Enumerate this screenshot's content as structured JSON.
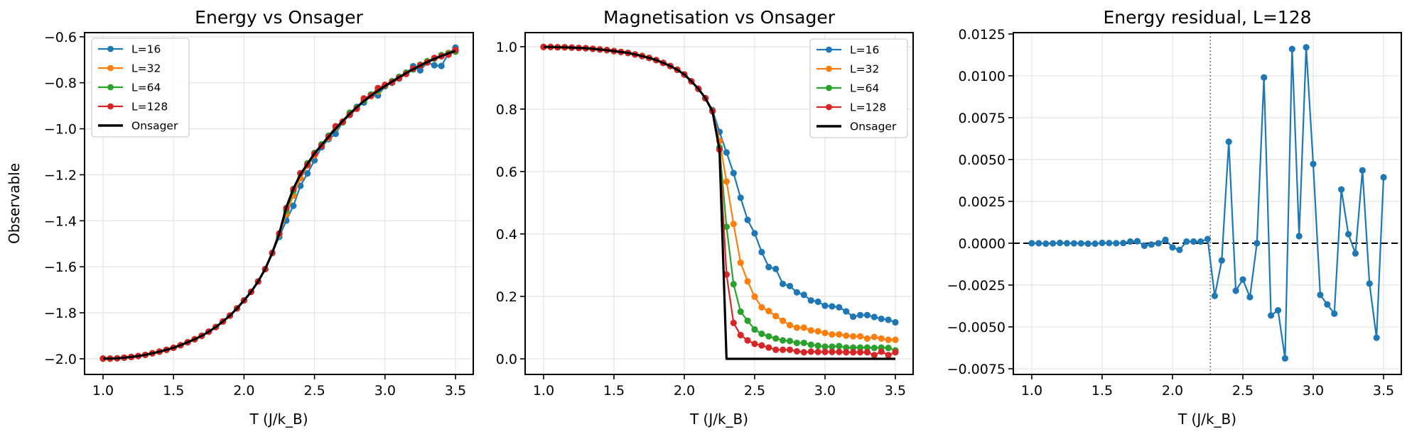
{
  "chart_data": [
    {
      "type": "line",
      "title": "Energy vs Onsager",
      "xlabel": "T (J/k_B)",
      "ylabel": "Observable",
      "xlim": [
        0.869,
        3.626
      ],
      "ylim": [
        -2.068,
        -0.582
      ],
      "xticks": [
        1.0,
        1.5,
        2.0,
        2.5,
        3.0,
        3.5
      ],
      "xtick_labels": [
        "1.0",
        "1.5",
        "2.0",
        "2.5",
        "3.0",
        "3.5"
      ],
      "yticks": [
        -2.0,
        -1.8,
        -1.6,
        -1.4,
        -1.2,
        -1.0,
        -0.8,
        -0.6
      ],
      "ytick_labels": [
        "−2.0",
        "−1.8",
        "−1.6",
        "−1.4",
        "−1.2",
        "−1.0",
        "−0.8",
        "−0.6"
      ],
      "grid": true,
      "legend": "upper left",
      "x": [
        1.0,
        1.05,
        1.1,
        1.15,
        1.2,
        1.25,
        1.3,
        1.35,
        1.4,
        1.45,
        1.5,
        1.55,
        1.6,
        1.65,
        1.7,
        1.75,
        1.8,
        1.85,
        1.9,
        1.95,
        2.0,
        2.05,
        2.1,
        2.15,
        2.2,
        2.25,
        2.3,
        2.35,
        2.4,
        2.45,
        2.5,
        2.55,
        2.6,
        2.65,
        2.7,
        2.75,
        2.8,
        2.85,
        2.9,
        2.95,
        3.0,
        3.05,
        3.1,
        3.15,
        3.2,
        3.25,
        3.3,
        3.35,
        3.4,
        3.45,
        3.5
      ],
      "series": [
        {
          "name": "L=16",
          "color": "#1f77b4",
          "marker": true,
          "values": [
            -1.999,
            -1.999,
            -1.998,
            -1.995,
            -1.992,
            -1.988,
            -1.983,
            -1.976,
            -1.969,
            -1.961,
            -1.952,
            -1.941,
            -1.928,
            -1.915,
            -1.9,
            -1.882,
            -1.862,
            -1.838,
            -1.812,
            -1.781,
            -1.746,
            -1.709,
            -1.664,
            -1.61,
            -1.54,
            -1.47,
            -1.399,
            -1.335,
            -1.248,
            -1.194,
            -1.137,
            -1.08,
            -1.045,
            -1.022,
            -0.97,
            -0.94,
            -0.905,
            -0.886,
            -0.858,
            -0.855,
            -0.815,
            -0.8,
            -0.782,
            -0.76,
            -0.728,
            -0.746,
            -0.712,
            -0.724,
            -0.727,
            -0.672,
            -0.647
          ]
        },
        {
          "name": "L=32",
          "color": "#ff7f0e",
          "marker": true,
          "values": [
            -1.999,
            -1.999,
            -1.998,
            -1.995,
            -1.992,
            -1.988,
            -1.983,
            -1.976,
            -1.969,
            -1.961,
            -1.952,
            -1.941,
            -1.928,
            -1.915,
            -1.9,
            -1.882,
            -1.862,
            -1.838,
            -1.812,
            -1.781,
            -1.746,
            -1.709,
            -1.664,
            -1.61,
            -1.54,
            -1.46,
            -1.37,
            -1.29,
            -1.215,
            -1.16,
            -1.115,
            -1.07,
            -1.04,
            -0.995,
            -0.968,
            -0.934,
            -0.91,
            -0.876,
            -0.858,
            -0.838,
            -0.812,
            -0.797,
            -0.78,
            -0.76,
            -0.741,
            -0.722,
            -0.712,
            -0.694,
            -0.685,
            -0.67,
            -0.663
          ]
        },
        {
          "name": "L=64",
          "color": "#2ca02c",
          "marker": true,
          "values": [
            -1.999,
            -1.999,
            -1.998,
            -1.995,
            -1.992,
            -1.988,
            -1.983,
            -1.976,
            -1.969,
            -1.961,
            -1.952,
            -1.941,
            -1.928,
            -1.915,
            -1.9,
            -1.882,
            -1.862,
            -1.838,
            -1.812,
            -1.781,
            -1.746,
            -1.709,
            -1.664,
            -1.61,
            -1.54,
            -1.457,
            -1.355,
            -1.27,
            -1.195,
            -1.15,
            -1.105,
            -1.068,
            -1.03,
            -0.992,
            -0.972,
            -0.93,
            -0.908,
            -0.876,
            -0.851,
            -0.833,
            -0.812,
            -0.793,
            -0.774,
            -0.756,
            -0.742,
            -0.722,
            -0.706,
            -0.695,
            -0.68,
            -0.672,
            -0.665
          ]
        },
        {
          "name": "L=128",
          "color": "#d62728",
          "marker": true,
          "values": [
            -1.999,
            -1.999,
            -1.998,
            -1.995,
            -1.992,
            -1.988,
            -1.983,
            -1.976,
            -1.969,
            -1.961,
            -1.952,
            -1.941,
            -1.928,
            -1.915,
            -1.9,
            -1.882,
            -1.862,
            -1.838,
            -1.812,
            -1.781,
            -1.746,
            -1.709,
            -1.664,
            -1.61,
            -1.54,
            -1.455,
            -1.345,
            -1.262,
            -1.193,
            -1.156,
            -1.109,
            -1.074,
            -1.035,
            -0.989,
            -0.97,
            -0.939,
            -0.913,
            -0.868,
            -0.856,
            -0.823,
            -0.809,
            -0.798,
            -0.78,
            -0.762,
            -0.738,
            -0.724,
            -0.711,
            -0.692,
            -0.685,
            -0.678,
            -0.658
          ]
        },
        {
          "name": "Onsager",
          "color": "#000000",
          "marker": false,
          "values": [
            -1.999,
            -1.999,
            -1.998,
            -1.995,
            -1.992,
            -1.988,
            -1.983,
            -1.976,
            -1.969,
            -1.961,
            -1.952,
            -1.941,
            -1.928,
            -1.915,
            -1.9,
            -1.882,
            -1.862,
            -1.838,
            -1.812,
            -1.781,
            -1.746,
            -1.709,
            -1.664,
            -1.61,
            -1.54,
            -1.455,
            -1.342,
            -1.261,
            -1.199,
            -1.153,
            -1.107,
            -1.071,
            -1.035,
            -0.999,
            -0.966,
            -0.935,
            -0.906,
            -0.88,
            -0.856,
            -0.835,
            -0.814,
            -0.795,
            -0.776,
            -0.758,
            -0.741,
            -0.725,
            -0.71,
            -0.696,
            -0.683,
            -0.672,
            -0.662
          ]
        }
      ]
    },
    {
      "type": "line",
      "title": "Magnetisation vs Onsager",
      "xlabel": "T (J/k_B)",
      "xlim": [
        0.869,
        3.626
      ],
      "ylim": [
        -0.05,
        1.045
      ],
      "xticks": [
        1.0,
        1.5,
        2.0,
        2.5,
        3.0,
        3.5
      ],
      "xtick_labels": [
        "1.0",
        "1.5",
        "2.0",
        "2.5",
        "3.0",
        "3.5"
      ],
      "yticks": [
        0.0,
        0.2,
        0.4,
        0.6,
        0.8,
        1.0
      ],
      "ytick_labels": [
        "0.0",
        "0.2",
        "0.4",
        "0.6",
        "0.8",
        "1.0"
      ],
      "grid": true,
      "legend": "upper right",
      "x": [
        1.0,
        1.05,
        1.1,
        1.15,
        1.2,
        1.25,
        1.3,
        1.35,
        1.4,
        1.45,
        1.5,
        1.55,
        1.6,
        1.65,
        1.7,
        1.75,
        1.8,
        1.85,
        1.9,
        1.95,
        2.0,
        2.05,
        2.1,
        2.15,
        2.2,
        2.25,
        2.3,
        2.35,
        2.4,
        2.45,
        2.5,
        2.55,
        2.6,
        2.65,
        2.7,
        2.75,
        2.8,
        2.85,
        2.9,
        2.95,
        3.0,
        3.05,
        3.1,
        3.15,
        3.2,
        3.25,
        3.3,
        3.35,
        3.4,
        3.45,
        3.5
      ],
      "series": [
        {
          "name": "L=16",
          "color": "#1f77b4",
          "marker": true,
          "values": [
            0.999,
            0.999,
            0.998,
            0.998,
            0.997,
            0.996,
            0.995,
            0.993,
            0.991,
            0.989,
            0.986,
            0.983,
            0.98,
            0.975,
            0.97,
            0.964,
            0.957,
            0.948,
            0.938,
            0.926,
            0.911,
            0.889,
            0.865,
            0.835,
            0.797,
            0.727,
            0.661,
            0.595,
            0.516,
            0.445,
            0.402,
            0.342,
            0.294,
            0.288,
            0.24,
            0.233,
            0.213,
            0.205,
            0.187,
            0.183,
            0.17,
            0.168,
            0.165,
            0.152,
            0.135,
            0.14,
            0.14,
            0.134,
            0.128,
            0.125,
            0.117
          ]
        },
        {
          "name": "L=32",
          "color": "#ff7f0e",
          "marker": true,
          "values": [
            0.999,
            0.999,
            0.998,
            0.998,
            0.997,
            0.996,
            0.995,
            0.993,
            0.991,
            0.989,
            0.986,
            0.983,
            0.98,
            0.975,
            0.97,
            0.964,
            0.957,
            0.948,
            0.938,
            0.926,
            0.911,
            0.889,
            0.865,
            0.835,
            0.795,
            0.698,
            0.568,
            0.432,
            0.308,
            0.248,
            0.199,
            0.165,
            0.153,
            0.137,
            0.122,
            0.108,
            0.1,
            0.1,
            0.091,
            0.088,
            0.083,
            0.078,
            0.078,
            0.074,
            0.072,
            0.072,
            0.065,
            0.07,
            0.065,
            0.061,
            0.061
          ]
        },
        {
          "name": "L=64",
          "color": "#2ca02c",
          "marker": true,
          "values": [
            0.999,
            0.999,
            0.998,
            0.998,
            0.997,
            0.996,
            0.995,
            0.993,
            0.991,
            0.989,
            0.986,
            0.983,
            0.98,
            0.975,
            0.97,
            0.964,
            0.957,
            0.948,
            0.938,
            0.926,
            0.911,
            0.889,
            0.865,
            0.835,
            0.794,
            0.677,
            0.423,
            0.239,
            0.151,
            0.122,
            0.094,
            0.08,
            0.072,
            0.065,
            0.059,
            0.057,
            0.051,
            0.051,
            0.045,
            0.042,
            0.039,
            0.039,
            0.041,
            0.036,
            0.036,
            0.036,
            0.036,
            0.035,
            0.036,
            0.035,
            0.027
          ]
        },
        {
          "name": "L=128",
          "color": "#d62728",
          "marker": true,
          "values": [
            0.999,
            0.999,
            0.998,
            0.998,
            0.997,
            0.996,
            0.995,
            0.993,
            0.991,
            0.989,
            0.986,
            0.983,
            0.98,
            0.975,
            0.97,
            0.964,
            0.957,
            0.948,
            0.938,
            0.926,
            0.911,
            0.889,
            0.865,
            0.835,
            0.793,
            0.67,
            0.27,
            0.115,
            0.076,
            0.059,
            0.048,
            0.043,
            0.036,
            0.029,
            0.029,
            0.029,
            0.024,
            0.021,
            0.023,
            0.022,
            0.022,
            0.022,
            0.022,
            0.021,
            0.021,
            0.021,
            0.021,
            0.012,
            0.023,
            0.012,
            0.021
          ]
        },
        {
          "name": "Onsager",
          "color": "#000000",
          "marker": false,
          "values": [
            0.999,
            0.999,
            0.998,
            0.998,
            0.997,
            0.996,
            0.995,
            0.993,
            0.991,
            0.989,
            0.986,
            0.983,
            0.98,
            0.975,
            0.97,
            0.964,
            0.957,
            0.948,
            0.938,
            0.926,
            0.911,
            0.889,
            0.865,
            0.835,
            0.793,
            0.669,
            0,
            0,
            0,
            0,
            0,
            0,
            0,
            0,
            0,
            0,
            0,
            0,
            0,
            0,
            0,
            0,
            0,
            0,
            0,
            0,
            0,
            0,
            0,
            0,
            0
          ]
        }
      ]
    },
    {
      "type": "line",
      "title": "Energy residual, L=128",
      "xlabel": "T (J/k_B)",
      "xlim": [
        0.869,
        3.626
      ],
      "ylim": [
        -0.00784,
        0.01258
      ],
      "xticks": [
        1.0,
        1.5,
        2.0,
        2.5,
        3.0,
        3.5
      ],
      "xtick_labels": [
        "1.0",
        "1.5",
        "2.0",
        "2.5",
        "3.0",
        "3.5"
      ],
      "yticks": [
        -0.0075,
        -0.005,
        -0.0025,
        0.0,
        0.0025,
        0.005,
        0.0075,
        0.01,
        0.0125
      ],
      "ytick_labels": [
        "−0.0075",
        "−0.0050",
        "−0.0025",
        "0.0000",
        "0.0025",
        "0.0050",
        "0.0075",
        "0.0100",
        "0.0125"
      ],
      "grid": true,
      "reference_lines": {
        "horizontal_zero": {
          "y": 0,
          "style": "dashed",
          "color": "#000000"
        },
        "critical_temperature": {
          "x": 2.269,
          "style": "dotted",
          "color": "#808080"
        }
      },
      "x": [
        1.0,
        1.05,
        1.1,
        1.15,
        1.2,
        1.25,
        1.3,
        1.35,
        1.4,
        1.45,
        1.5,
        1.55,
        1.6,
        1.65,
        1.7,
        1.75,
        1.8,
        1.85,
        1.9,
        1.95,
        2.0,
        2.05,
        2.1,
        2.15,
        2.2,
        2.25,
        2.3,
        2.35,
        2.4,
        2.45,
        2.5,
        2.55,
        2.6,
        2.65,
        2.7,
        2.75,
        2.8,
        2.85,
        2.9,
        2.95,
        3.0,
        3.05,
        3.1,
        3.15,
        3.2,
        3.25,
        3.3,
        3.35,
        3.4,
        3.45,
        3.5
      ],
      "series": [
        {
          "color": "#1f77b4",
          "marker": true,
          "values": [
            0,
            0,
            -3e-05,
            -1e-05,
            2e-05,
            0,
            -1e-05,
            -1e-05,
            -3e-05,
            -3e-05,
            2e-05,
            1e-05,
            0,
            1e-05,
            0.0001,
            0.00012,
            -0.00015,
            -8e-05,
            0,
            0.0002,
            -0.00025,
            -0.0004,
            0.0001,
            0.0001,
            0.0001,
            0.00025,
            -0.00315,
            -0.00103,
            0.00606,
            -0.00284,
            -0.00217,
            -0.00322,
            0,
            0.0099,
            -0.00432,
            -0.00401,
            -0.00688,
            0.0116,
            0.00042,
            0.0117,
            0.00473,
            -0.00309,
            -0.00366,
            -0.00421,
            0.00321,
            0.00054,
            -0.00061,
            0.00435,
            -0.00241,
            -0.00565,
            0.00394
          ]
        }
      ]
    }
  ]
}
